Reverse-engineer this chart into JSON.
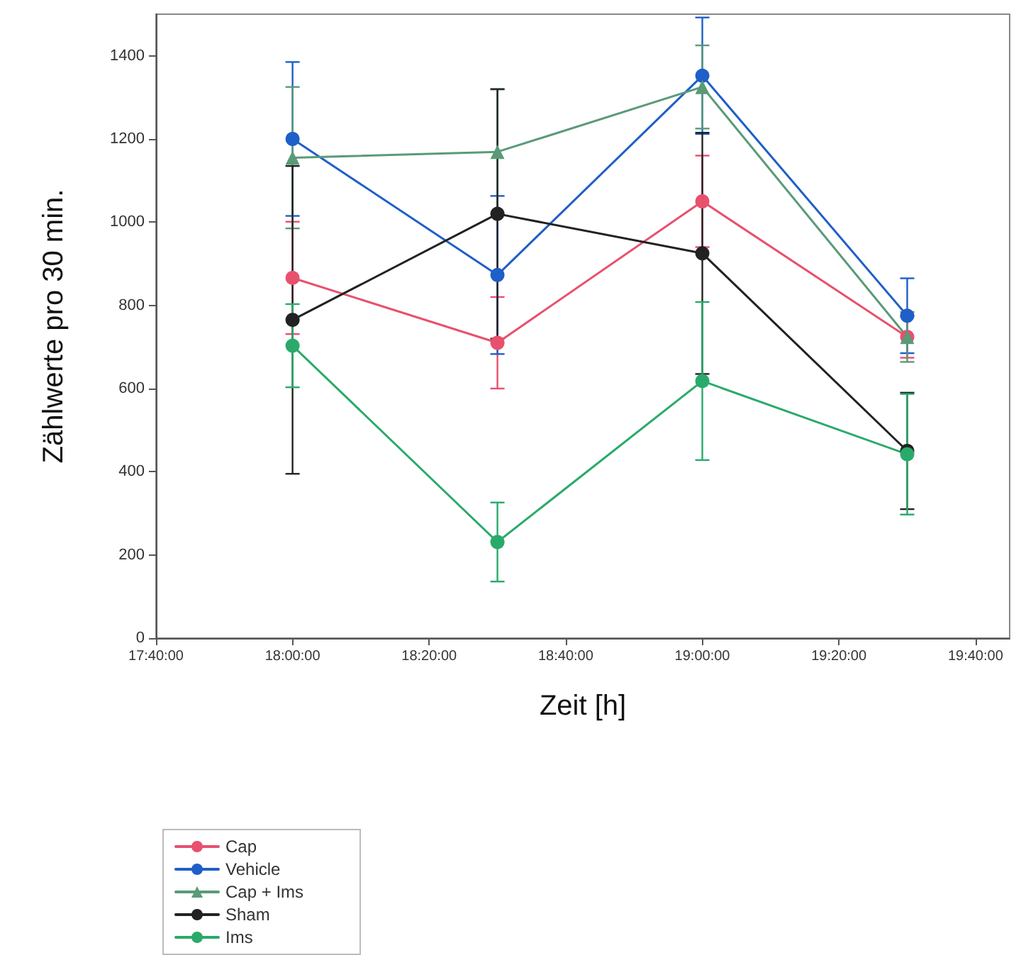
{
  "chart_data": {
    "type": "line",
    "xlabel": "Zeit [h]",
    "ylabel": "Zählwerte pro 30 min.",
    "xlim": [
      17.6667,
      19.75
    ],
    "xticks": [
      {
        "value": 17.6667,
        "label": "17:40:00"
      },
      {
        "value": 18,
        "label": "18:00:00"
      },
      {
        "value": 18.3333,
        "label": "18:20:00"
      },
      {
        "value": 18.6667,
        "label": "18:40:00"
      },
      {
        "value": 19,
        "label": "19:00:00"
      },
      {
        "value": 19.3333,
        "label": "19:20:00"
      },
      {
        "value": 19.6667,
        "label": "19:40:00"
      }
    ],
    "ylim": [
      0,
      1500
    ],
    "yticks": [
      0,
      200,
      400,
      600,
      800,
      1000,
      1200,
      1400
    ],
    "x": [
      18,
      18.5,
      19,
      19.5
    ],
    "series": [
      {
        "name": "Cap",
        "color": "#e8506e",
        "marker": "circle",
        "values": [
          866,
          710,
          1050,
          724
        ],
        "errors": [
          135,
          110,
          110,
          50
        ]
      },
      {
        "name": "Vehicle",
        "color": "#1f5fc8",
        "marker": "circle",
        "values": [
          1200,
          873,
          1352,
          775
        ],
        "errors": [
          185,
          190,
          140,
          90
        ]
      },
      {
        "name": "Cap + Ims",
        "color": "#5a9a78",
        "marker": "triangle",
        "values": [
          1155,
          1169,
          1325,
          724
        ],
        "errors": [
          170,
          150,
          100,
          60
        ]
      },
      {
        "name": "Sham",
        "color": "#222222",
        "marker": "circle",
        "values": [
          765,
          1020,
          925,
          450
        ],
        "errors": [
          370,
          300,
          290,
          140
        ]
      },
      {
        "name": "Ims",
        "color": "#2aaa6a",
        "marker": "circle",
        "values": [
          703,
          231,
          618,
          442
        ],
        "errors": [
          100,
          95,
          190,
          145
        ]
      }
    ],
    "grid": false,
    "legend": "bottom left"
  }
}
